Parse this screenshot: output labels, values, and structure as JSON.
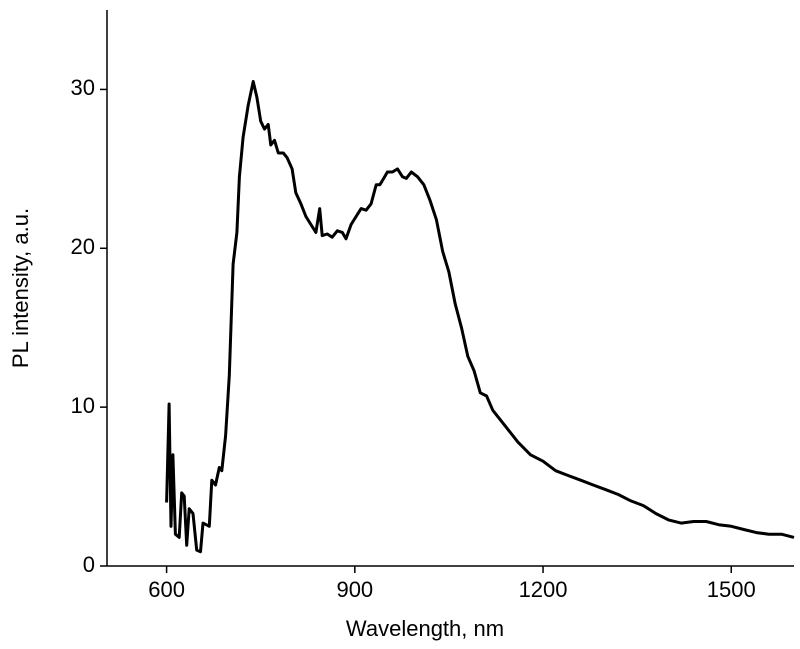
{
  "chart_data": {
    "type": "line",
    "xlabel": "Wavelength, nm",
    "ylabel": "PL intensity, a.u.",
    "xlim": [
      505,
      1600
    ],
    "ylim": [
      0,
      35
    ],
    "xticks": [
      600,
      900,
      1200,
      1500
    ],
    "yticks": [
      0,
      10,
      20,
      30
    ],
    "series": [
      {
        "color": "#000000",
        "x": [
          600,
          604,
          607,
          610,
          614,
          620,
          624,
          628,
          632,
          636,
          642,
          648,
          654,
          658,
          668,
          672,
          678,
          684,
          688,
          694,
          700,
          706,
          712,
          716,
          722,
          730,
          738,
          744,
          750,
          756,
          762,
          766,
          772,
          778,
          786,
          792,
          800,
          806,
          814,
          822,
          830,
          838,
          844,
          848,
          856,
          864,
          872,
          880,
          886,
          894,
          902,
          910,
          918,
          926,
          934,
          940,
          946,
          952,
          960,
          968,
          976,
          982,
          990,
          1000,
          1010,
          1020,
          1030,
          1040,
          1050,
          1060,
          1070,
          1080,
          1090,
          1100,
          1110,
          1120,
          1140,
          1160,
          1180,
          1200,
          1220,
          1240,
          1260,
          1280,
          1300,
          1320,
          1340,
          1360,
          1380,
          1400,
          1420,
          1440,
          1460,
          1480,
          1500,
          1520,
          1540,
          1560,
          1580,
          1600
        ],
        "values": [
          4,
          10.2,
          2.5,
          7,
          2,
          1.8,
          4.6,
          4.4,
          1.3,
          3.6,
          3.3,
          1,
          0.9,
          2.7,
          2.5,
          5.4,
          5.1,
          6.2,
          6,
          8.2,
          12,
          19,
          21,
          24.5,
          27,
          29,
          30.5,
          29.5,
          28,
          27.5,
          27.8,
          26.5,
          26.8,
          26,
          26,
          25.7,
          25,
          23.5,
          22.8,
          22,
          21.5,
          21,
          22.5,
          20.8,
          20.9,
          20.7,
          21.1,
          21,
          20.6,
          21.5,
          22,
          22.5,
          22.4,
          22.8,
          24,
          24,
          24.4,
          24.8,
          24.8,
          25,
          24.5,
          24.4,
          24.8,
          24.5,
          24,
          23,
          21.8,
          19.8,
          18.5,
          16.5,
          15,
          13.2,
          12.3,
          10.9,
          10.7,
          9.8,
          8.8,
          7.8,
          7,
          6.6,
          6,
          5.7,
          5.4,
          5.1,
          4.8,
          4.5,
          4.1,
          3.8,
          3.3,
          2.9,
          2.7,
          2.8,
          2.8,
          2.6,
          2.5,
          2.3,
          2.1,
          2,
          2,
          1.8
        ]
      }
    ]
  }
}
